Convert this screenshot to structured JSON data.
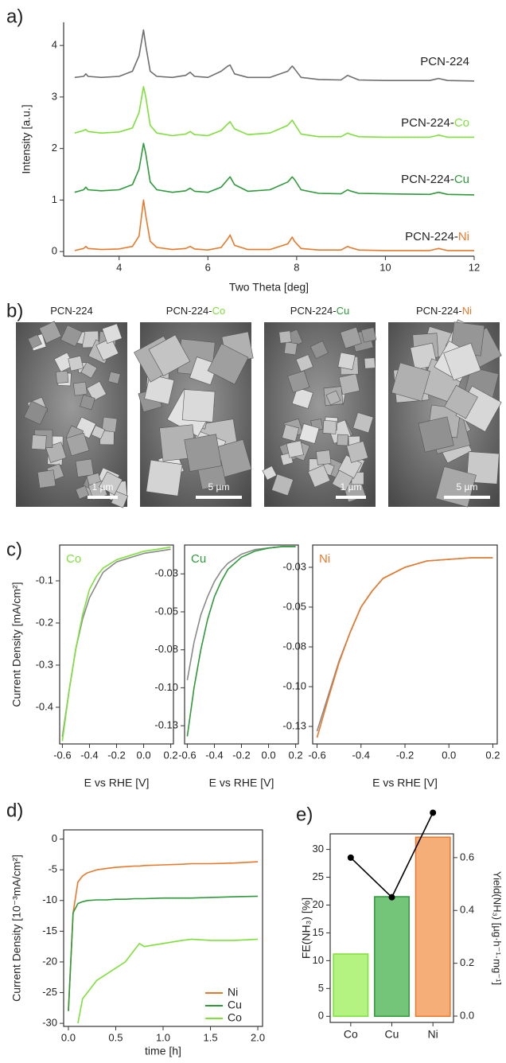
{
  "chart_data": [
    {
      "type": "line",
      "panel_label": "a)",
      "x": [
        3.0,
        3.2,
        3.25,
        3.3,
        3.6,
        4.0,
        4.3,
        4.45,
        4.55,
        4.6,
        4.7,
        4.85,
        5.2,
        5.5,
        5.6,
        5.7,
        6.0,
        6.3,
        6.45,
        6.5,
        6.6,
        6.9,
        7.4,
        7.8,
        7.9,
        7.95,
        8.1,
        8.5,
        9.0,
        9.15,
        9.2,
        9.4,
        10.0,
        11.0,
        11.15,
        11.2,
        11.4,
        12.0
      ],
      "series": [
        {
          "name": "PCN-224",
          "color": "#6e6e6e",
          "values": [
            3.38,
            3.4,
            3.45,
            3.4,
            3.38,
            3.4,
            3.5,
            3.8,
            4.3,
            4.0,
            3.5,
            3.4,
            3.38,
            3.42,
            3.48,
            3.4,
            3.38,
            3.5,
            3.6,
            3.62,
            3.45,
            3.38,
            3.38,
            3.5,
            3.6,
            3.55,
            3.38,
            3.34,
            3.33,
            3.42,
            3.4,
            3.33,
            3.32,
            3.32,
            3.35,
            3.36,
            3.32,
            3.31
          ]
        },
        {
          "name": "PCN-224-",
          "metal": "Co",
          "color": "#7ee03a",
          "values": [
            2.3,
            2.35,
            2.37,
            2.33,
            2.3,
            2.32,
            2.4,
            2.7,
            3.2,
            3.0,
            2.45,
            2.3,
            2.25,
            2.28,
            2.33,
            2.27,
            2.25,
            2.35,
            2.48,
            2.52,
            2.38,
            2.27,
            2.3,
            2.45,
            2.55,
            2.48,
            2.28,
            2.23,
            2.23,
            2.3,
            2.28,
            2.23,
            2.22,
            2.22,
            2.25,
            2.26,
            2.22,
            2.22
          ]
        },
        {
          "name": "PCN-224-",
          "metal": "Cu",
          "color": "#2e9a3a",
          "values": [
            1.15,
            1.2,
            1.25,
            1.2,
            1.18,
            1.2,
            1.3,
            1.6,
            2.1,
            1.9,
            1.35,
            1.2,
            1.15,
            1.18,
            1.23,
            1.17,
            1.15,
            1.25,
            1.4,
            1.45,
            1.3,
            1.17,
            1.2,
            1.35,
            1.45,
            1.4,
            1.2,
            1.13,
            1.12,
            1.2,
            1.18,
            1.13,
            1.12,
            1.11,
            1.14,
            1.15,
            1.11,
            1.1
          ]
        },
        {
          "name": "PCN-224-",
          "metal": "Ni",
          "color": "#e8792a",
          "values": [
            0.02,
            0.06,
            0.1,
            0.06,
            0.04,
            0.05,
            0.1,
            0.3,
            1.0,
            0.7,
            0.2,
            0.08,
            0.04,
            0.06,
            0.1,
            0.05,
            0.03,
            0.08,
            0.25,
            0.32,
            0.12,
            0.04,
            0.04,
            0.15,
            0.28,
            0.2,
            0.06,
            0.03,
            0.03,
            0.1,
            0.08,
            0.03,
            0.02,
            0.02,
            0.05,
            0.06,
            0.02,
            0.02
          ]
        }
      ],
      "xlim": [
        2.75,
        12
      ],
      "ylim": [
        -0.09,
        4.45
      ],
      "xticks": [
        4,
        6,
        8,
        10,
        12
      ],
      "yticks": [
        0,
        1,
        2,
        3,
        4
      ],
      "xlabel": "Two Theta [deg]",
      "ylabel": "Intensity [a.u.]"
    },
    {
      "type": "images",
      "panel_label": "b)",
      "panels": [
        {
          "title": "PCN-224",
          "scale_bar": "1 µm"
        },
        {
          "title": "PCN-224-",
          "metal": "Co",
          "metal_color": "#7ee03a",
          "scale_bar": "5 µm"
        },
        {
          "title": "PCN-224-",
          "metal": "Cu",
          "metal_color": "#2e9a3a",
          "scale_bar": "1 µm"
        },
        {
          "title": "PCN-224-",
          "metal": "Ni",
          "metal_color": "#e8792a",
          "scale_bar": "5 µm"
        }
      ]
    },
    {
      "type": "line",
      "panel_label": "c)",
      "ylabel": "Current Density [mA/cm²]",
      "xlabel": "E vs RHE [V]",
      "x": [
        -0.6,
        -0.55,
        -0.5,
        -0.45,
        -0.4,
        -0.35,
        -0.3,
        -0.2,
        -0.1,
        0.0,
        0.1,
        0.2
      ],
      "series": [
        {
          "color": "#8a8a8a",
          "values": [
            -0.47,
            -0.36,
            -0.26,
            -0.19,
            -0.14,
            -0.11,
            -0.08,
            -0.055,
            -0.045,
            -0.035,
            -0.03,
            -0.025
          ]
        },
        {
          "name": "Co",
          "color": "#7ee03a",
          "values": [
            -0.48,
            -0.36,
            -0.26,
            -0.18,
            -0.12,
            -0.09,
            -0.07,
            -0.05,
            -0.04,
            -0.03,
            -0.025,
            -0.02
          ]
        }
      ],
      "xlim": [
        -0.62,
        0.22
      ],
      "ylim": [
        -0.487,
        -0.015
      ],
      "xticks": [
        -0.6,
        -0.4,
        -0.2,
        {
          "value": 0,
          "label": "0.0"
        },
        0.2
      ],
      "yticks": [
        -0.1,
        -0.2,
        -0.3,
        -0.4
      ]
    },
    {
      "type": "line",
      "xlabel": "E vs RHE [V]",
      "x": [
        -0.6,
        -0.55,
        -0.5,
        -0.45,
        -0.4,
        -0.35,
        -0.3,
        -0.2,
        -0.1,
        0.0,
        0.1,
        0.2
      ],
      "series": [
        {
          "color": "#8a8a8a",
          "values": [
            -0.095,
            -0.07,
            -0.052,
            -0.04,
            -0.03,
            -0.023,
            -0.018,
            -0.012,
            -0.009,
            -0.008,
            -0.007,
            -0.007
          ]
        },
        {
          "name": "Cu",
          "color": "#2e9a3a",
          "values": [
            -0.132,
            -0.1,
            -0.075,
            -0.055,
            -0.04,
            -0.03,
            -0.022,
            -0.014,
            -0.01,
            -0.008,
            -0.007,
            -0.007
          ]
        }
      ],
      "xlim": [
        -0.62,
        0.22
      ],
      "ylim": [
        -0.137,
        -0.006
      ],
      "xticks": [
        -0.6,
        -0.4,
        -0.2,
        {
          "value": 0,
          "label": "0.0"
        },
        0.2
      ],
      "yticks": [
        {
          "value": -0.025,
          "label": "-0.03"
        },
        -0.05,
        {
          "value": -0.075,
          "label": "-0.08"
        },
        {
          "value": -0.1,
          "label": "-0.10"
        },
        {
          "value": -0.125,
          "label": "-0.13"
        }
      ]
    },
    {
      "type": "line",
      "xlabel": "E vs RHE [V]",
      "x": [
        -0.6,
        -0.55,
        -0.5,
        -0.45,
        -0.4,
        -0.35,
        -0.3,
        -0.2,
        -0.1,
        0.0,
        0.1,
        0.2
      ],
      "series": [
        {
          "color": "#8a8a8a",
          "values": [
            -0.128,
            -0.106,
            -0.084,
            -0.066,
            -0.05,
            -0.04,
            -0.032,
            -0.025,
            -0.021,
            -0.02,
            -0.019,
            -0.019
          ]
        },
        {
          "name": "Ni",
          "color": "#e8792a",
          "values": [
            -0.132,
            -0.108,
            -0.085,
            -0.066,
            -0.05,
            -0.04,
            -0.032,
            -0.025,
            -0.021,
            -0.02,
            -0.019,
            -0.019
          ]
        }
      ],
      "xlim": [
        -0.62,
        0.22
      ],
      "ylim": [
        -0.136,
        -0.011
      ],
      "xticks": [
        -0.6,
        -0.4,
        -0.2,
        {
          "value": 0,
          "label": "0.0"
        },
        0.2
      ],
      "yticks": [
        {
          "value": -0.025,
          "label": "-0.03"
        },
        -0.05,
        {
          "value": -0.075,
          "label": "-0.08"
        },
        {
          "value": -0.1,
          "label": "-0.10"
        },
        {
          "value": -0.125,
          "label": "-0.13"
        }
      ]
    },
    {
      "type": "line",
      "panel_label": "d)",
      "ylabel": "Current Density [10⁻³mA/cm²]",
      "xlabel": "time [h]",
      "x": [
        0,
        0.05,
        0.1,
        0.15,
        0.2,
        0.3,
        0.4,
        0.5,
        0.6,
        0.7,
        0.75,
        0.8,
        1.0,
        1.2,
        1.3,
        1.5,
        1.75,
        2.0
      ],
      "series": [
        {
          "name": "Ni",
          "color": "#e8792a",
          "values": [
            -28,
            -12,
            -7,
            -6,
            -5.5,
            -5,
            -4.8,
            -4.6,
            -4.5,
            -4.4,
            -4.4,
            -4.3,
            -4.2,
            -4.1,
            -4,
            -4,
            -3.9,
            -3.7
          ]
        },
        {
          "name": "Cu",
          "color": "#2e9a3a",
          "values": [
            -28,
            -12,
            -10.5,
            -10.2,
            -10,
            -9.9,
            -9.9,
            -9.8,
            -9.8,
            -9.7,
            -9.7,
            -9.7,
            -9.6,
            -9.6,
            -9.6,
            -9.5,
            -9.4,
            -9.3
          ]
        },
        {
          "name": "Co",
          "color": "#7ee03a",
          "values": [
            null,
            null,
            -30,
            -26,
            -25,
            -23,
            -22,
            -21,
            -20,
            -18,
            -17,
            -17.5,
            -17,
            -16.5,
            -16.3,
            -16.5,
            -16.5,
            -16.3
          ]
        }
      ],
      "xlim": [
        -0.05,
        2.05
      ],
      "ylim": [
        -30.5,
        1.5
      ],
      "xticks": [
        {
          "value": 0,
          "label": "0.0"
        },
        0.5,
        {
          "value": 1,
          "label": "1.0"
        },
        1.5,
        {
          "value": 2,
          "label": "2.0"
        }
      ],
      "yticks": [
        0,
        -5,
        -10,
        -15,
        -20,
        -25,
        -30
      ],
      "legend": "lower right"
    },
    {
      "type": "bar",
      "panel_label": "e)",
      "ylabel": "FE(NH₃) [%]",
      "y2label": "Yield(NH₃) [µg·h⁻¹·mg⁻¹]",
      "categories": [
        "Co",
        "Cu",
        "Ni"
      ],
      "series": [
        {
          "type": "bar",
          "colors": [
            "#b4f282",
            "#74c47a",
            "#f6ae78"
          ],
          "edge_colors": [
            "#7ee03a",
            "#2e9a3a",
            "#e8792a"
          ],
          "values": [
            11.2,
            21.5,
            32.2
          ]
        },
        {
          "type": "line",
          "axis": "y2",
          "color": "#000000",
          "values": [
            0.6,
            0.45,
            0.77
          ]
        }
      ],
      "ylim": [
        -1.1,
        32.8
      ],
      "yticks": [
        0,
        5,
        10,
        15,
        20,
        25,
        30
      ],
      "y2lim": [
        -0.024,
        0.69
      ],
      "y2ticks": [
        {
          "value": 0,
          "label": "0.0"
        },
        0.2,
        0.4,
        0.6
      ]
    }
  ]
}
